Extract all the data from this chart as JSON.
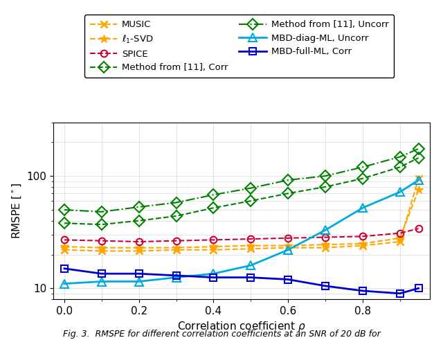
{
  "x": [
    0,
    0.1,
    0.2,
    0.3,
    0.4,
    0.5,
    0.6,
    0.7,
    0.8,
    0.9,
    0.95
  ],
  "MUSIC": [
    22,
    21.5,
    21.5,
    22,
    22,
    22.5,
    23,
    23,
    24,
    26,
    95
  ],
  "l1_SVD": [
    23.5,
    23,
    23,
    23,
    23.5,
    24,
    24,
    24.5,
    25,
    28,
    75
  ],
  "SPICE": [
    27,
    26.5,
    26,
    26.5,
    27,
    27.5,
    28,
    28.5,
    29,
    31,
    34
  ],
  "Method11_Corr": [
    38,
    37,
    40,
    44,
    52,
    60,
    70,
    80,
    95,
    120,
    145
  ],
  "Method11_Uncorr": [
    50,
    48,
    53,
    58,
    68,
    78,
    92,
    100,
    120,
    148,
    175
  ],
  "MBD_diag_Uncorr": [
    11,
    11.5,
    11.5,
    12.5,
    13.5,
    16,
    22,
    33,
    52,
    72,
    92
  ],
  "MBD_full_Corr": [
    15,
    13.5,
    13.5,
    13,
    12.5,
    12.5,
    12,
    10.5,
    9.5,
    9,
    10
  ],
  "colors": {
    "MUSIC": "#FFA500",
    "l1_SVD": "#FFA500",
    "SPICE": "#CC0033",
    "Method11_Corr": "#008000",
    "Method11_Uncorr": "#008000",
    "MBD_diag_Uncorr": "#00AADD",
    "MBD_full_Corr": "#0000CC"
  },
  "xlabel": "Correlation coefficient $\\rho$",
  "ylabel": "RMSPE [$^\\circ$]",
  "caption": "Fig. 3.  RMSPE for different correlation coefficients at an SNR of 20 dB for",
  "ylim": [
    8,
    300
  ],
  "background_color": "#ffffff"
}
